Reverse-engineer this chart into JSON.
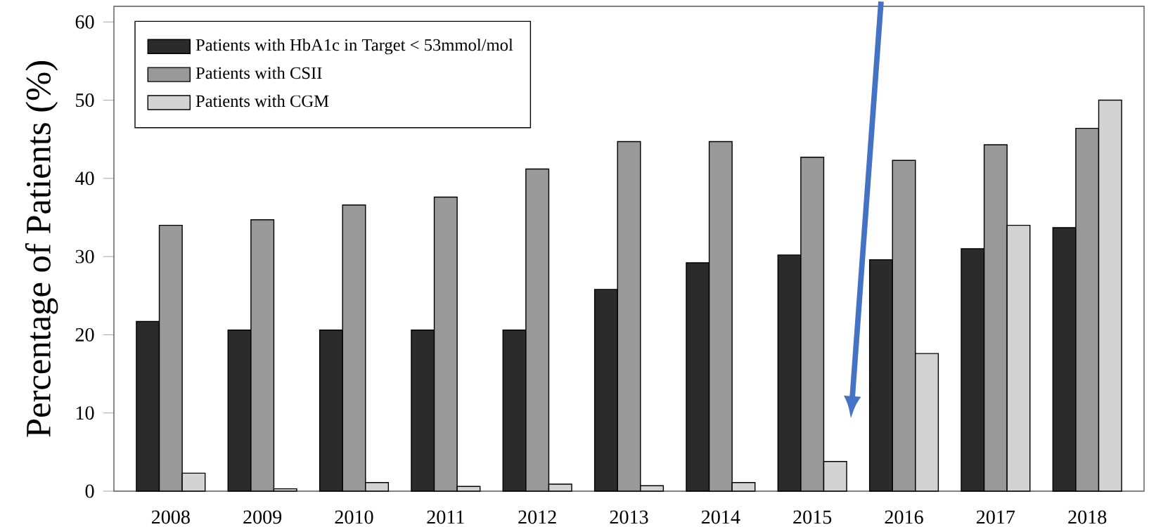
{
  "chart_data": {
    "type": "bar",
    "ylabel": "Percentage of Patients (%)",
    "categories": [
      "2008",
      "2009",
      "2010",
      "2011",
      "2012",
      "2013",
      "2014",
      "2015",
      "2016",
      "2017",
      "2018"
    ],
    "series": [
      {
        "name": "Patients with HbA1c in Target < 53mmol/mol",
        "color": "#2b2b2b",
        "values": [
          21.7,
          20.6,
          20.6,
          20.6,
          20.6,
          25.8,
          29.2,
          30.2,
          29.6,
          31.0,
          33.7
        ]
      },
      {
        "name": "Patients with CSII",
        "color": "#999999",
        "values": [
          34.0,
          34.7,
          36.6,
          37.6,
          41.2,
          44.7,
          44.7,
          42.7,
          42.3,
          44.3,
          46.4
        ]
      },
      {
        "name": "Patients with CGM",
        "color": "#d3d3d3",
        "values": [
          2.3,
          0.3,
          1.1,
          0.6,
          0.9,
          0.7,
          1.1,
          3.8,
          17.6,
          34.0,
          50.0
        ]
      }
    ],
    "ylim": [
      0,
      62
    ],
    "yticks": [
      0,
      10,
      20,
      30,
      40,
      50,
      60
    ],
    "legend": "top left",
    "grid": false
  }
}
